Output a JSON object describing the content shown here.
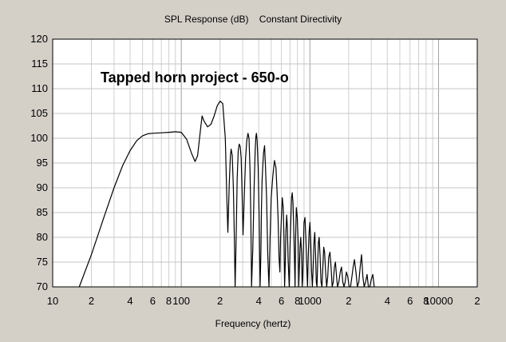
{
  "chart_data": {
    "type": "line",
    "title": "SPL Response (dB)    Constant Directivity",
    "xlabel": "Frequency (hertz)",
    "ylabel": "",
    "xscale": "log",
    "xlim": [
      10,
      20000
    ],
    "ylim": [
      70,
      120
    ],
    "grid": true,
    "annotation": "Tapped horn project - 650-o",
    "y_ticks": [
      "70",
      "75",
      "80",
      "85",
      "90",
      "95",
      "100",
      "105",
      "110",
      "115",
      "120"
    ],
    "x_ticks": [
      {
        "value": 10,
        "label": "10"
      },
      {
        "value": 20,
        "label": "2"
      },
      {
        "value": 40,
        "label": "4"
      },
      {
        "value": 60,
        "label": "6"
      },
      {
        "value": 80,
        "label": "8"
      },
      {
        "value": 100,
        "label": "100"
      },
      {
        "value": 200,
        "label": "2"
      },
      {
        "value": 400,
        "label": "4"
      },
      {
        "value": 600,
        "label": "6"
      },
      {
        "value": 800,
        "label": "8"
      },
      {
        "value": 1000,
        "label": "1000"
      },
      {
        "value": 2000,
        "label": "2"
      },
      {
        "value": 4000,
        "label": "4"
      },
      {
        "value": 6000,
        "label": "6"
      },
      {
        "value": 8000,
        "label": "8"
      },
      {
        "value": 10000,
        "label": "10000"
      },
      {
        "value": 20000,
        "label": "2"
      }
    ],
    "series": [
      {
        "x": [
          16.1,
          20,
          25,
          30,
          35,
          40,
          45,
          50,
          55,
          60,
          70,
          80,
          90,
          100,
          110,
          120,
          128,
          134,
          140,
          145,
          150,
          160,
          170,
          180,
          190,
          200,
          210,
          220,
          226,
          230,
          236,
          241,
          244,
          249,
          254,
          258,
          262,
          267,
          272,
          277,
          282,
          287,
          292,
          297,
          302,
          308,
          316,
          323,
          330,
          336,
          342,
          347,
          352,
          360,
          368,
          375,
          380,
          384,
          389,
          396,
          403,
          410,
          416,
          420,
          425,
          430,
          436,
          444,
          452,
          460,
          470,
          480,
          490,
          500,
          515,
          530,
          545,
          556,
          565,
          575,
          584,
          592,
          600,
          610,
          620,
          628,
          636,
          644,
          650,
          660,
          668,
          676,
          690,
          700,
          712,
          720,
          728,
          738,
          748,
          758,
          766,
          774,
          784,
          798,
          810,
          818,
          828,
          838,
          848,
          860,
          870,
          880,
          890,
          900,
          915,
          930,
          945,
          958,
          970,
          985,
          1000,
          1015,
          1030,
          1045,
          1060,
          1075,
          1090,
          1105,
          1120,
          1135,
          1150,
          1165,
          1180,
          1200,
          1220,
          1240,
          1260,
          1280,
          1300,
          1325,
          1350,
          1375,
          1400,
          1430,
          1460,
          1490,
          1520,
          1550,
          1580,
          1610,
          1640,
          1680,
          1720,
          1760,
          1800,
          1840,
          1880,
          1920,
          1970,
          2020,
          2070,
          2120,
          2170,
          2220,
          2280,
          2340,
          2400,
          2460,
          2520,
          2580,
          2640,
          2710,
          2780,
          2850,
          2920,
          3000,
          3080,
          3160
        ],
        "y": [
          70,
          76.5,
          84,
          90,
          94.5,
          97.5,
          99.5,
          100.5,
          100.9,
          101,
          101.1,
          101.2,
          101.3,
          101.2,
          99.8,
          97,
          95.3,
          96.5,
          101,
          104.5,
          103.5,
          102.3,
          102.8,
          104.5,
          106.5,
          107.5,
          107,
          100,
          88,
          81,
          91,
          96.5,
          97.8,
          96.5,
          90,
          81,
          70,
          80,
          92,
          97.5,
          98.8,
          98.3,
          96,
          88.5,
          80.5,
          87.5,
          96,
          99.5,
          101,
          100,
          94,
          85,
          70,
          78,
          90,
          97.5,
          100.3,
          101,
          99.5,
          94,
          84,
          70,
          77,
          86,
          91.5,
          94.5,
          97,
          98.5,
          94,
          88,
          76.5,
          70,
          80,
          88,
          92.5,
          95.5,
          94,
          89,
          84,
          76,
          73,
          80,
          84,
          88,
          86,
          80,
          70,
          75,
          81,
          84.5,
          82,
          76,
          70,
          78,
          84,
          88,
          89,
          87,
          82,
          76,
          70,
          80,
          86,
          84,
          79,
          70,
          74,
          78,
          80,
          77,
          70,
          72,
          78,
          83,
          84,
          80,
          74,
          70,
          76,
          81,
          83,
          79,
          73,
          70,
          74,
          79,
          81,
          77,
          71,
          70,
          75,
          79,
          80,
          76,
          71,
          70,
          74,
          78,
          77,
          73,
          70,
          72,
          76,
          77,
          74,
          70,
          71,
          74,
          75,
          72,
          70,
          71,
          73,
          74,
          71,
          70,
          71,
          73,
          72,
          70,
          70,
          72,
          74,
          75.5,
          73,
          70,
          71,
          74,
          76.5,
          72,
          70,
          71,
          72.5,
          70,
          70,
          71.5,
          72.5,
          70
        ]
      }
    ]
  }
}
